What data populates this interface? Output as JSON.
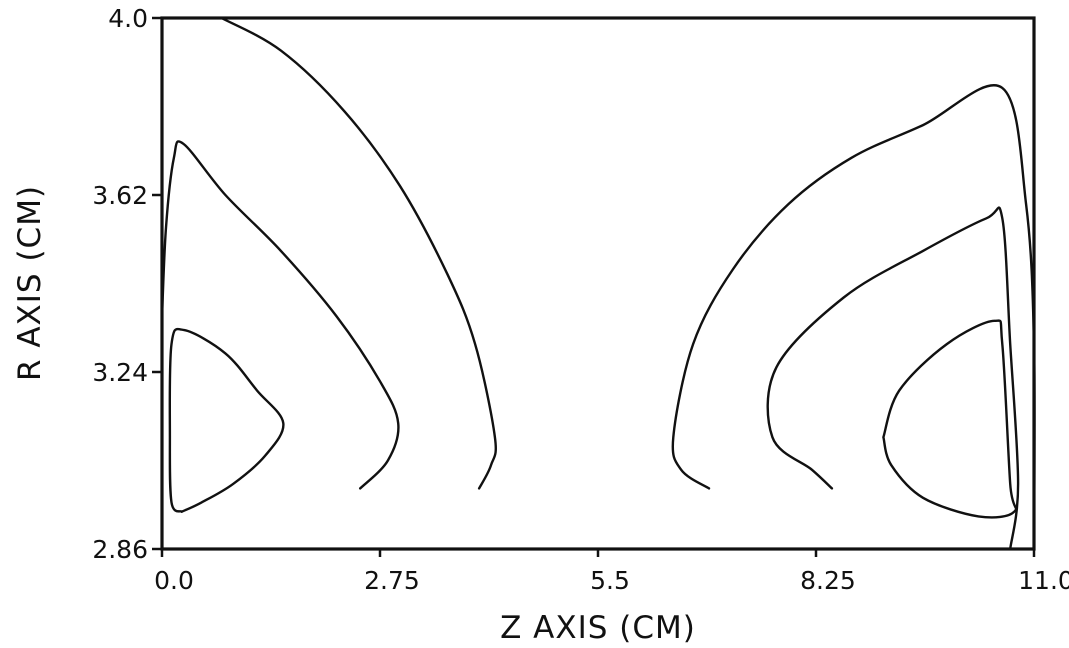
{
  "chart_data": {
    "type": "contour",
    "xlabel": "Z AXIS (CM)",
    "ylabel": "R AXIS (CM)",
    "xlim": [
      0.0,
      11.0
    ],
    "ylim": [
      2.86,
      4.0
    ],
    "x_tick_labels": [
      "0.0",
      "2.75",
      "5.5",
      "8.25",
      "11.0"
    ],
    "y_tick_labels": [
      "2.86",
      "3.24",
      "3.62",
      "4.0"
    ],
    "grid": false,
    "contours": [
      {
        "name": "",
        "points": [
          [
            0.25,
            2.94
          ],
          [
            0.12,
            2.96
          ],
          [
            0.1,
            3.1
          ],
          [
            0.12,
            3.3
          ],
          [
            0.28,
            3.33
          ],
          [
            0.8,
            3.28
          ],
          [
            1.2,
            3.2
          ],
          [
            1.53,
            3.13
          ],
          [
            1.3,
            3.06
          ],
          [
            0.9,
            3.0
          ],
          [
            0.5,
            2.96
          ],
          [
            0.25,
            2.94
          ]
        ]
      },
      {
        "name": "",
        "points": [
          [
            0.0,
            3.36
          ],
          [
            0.05,
            3.55
          ],
          [
            0.15,
            3.7
          ],
          [
            0.27,
            3.73
          ],
          [
            0.8,
            3.62
          ],
          [
            1.5,
            3.5
          ],
          [
            2.2,
            3.36
          ],
          [
            2.75,
            3.22
          ],
          [
            2.98,
            3.13
          ],
          [
            2.85,
            3.05
          ],
          [
            2.5,
            2.99
          ]
        ]
      },
      {
        "name": "",
        "points": [
          [
            0.75,
            4.0
          ],
          [
            1.5,
            3.93
          ],
          [
            2.3,
            3.8
          ],
          [
            3.0,
            3.64
          ],
          [
            3.6,
            3.45
          ],
          [
            3.95,
            3.3
          ],
          [
            4.2,
            3.1
          ],
          [
            4.15,
            3.04
          ],
          [
            4.0,
            2.99
          ]
        ]
      },
      {
        "name": "",
        "points": [
          [
            6.9,
            2.99
          ],
          [
            6.55,
            3.03
          ],
          [
            6.45,
            3.1
          ],
          [
            6.7,
            3.3
          ],
          [
            7.2,
            3.46
          ],
          [
            7.9,
            3.6
          ],
          [
            8.7,
            3.7
          ],
          [
            9.6,
            3.77
          ],
          [
            10.6,
            3.85
          ],
          [
            10.9,
            3.6
          ],
          [
            11.0,
            3.3
          ],
          [
            11.0,
            2.86
          ]
        ]
      },
      {
        "name": "",
        "points": [
          [
            8.45,
            2.99
          ],
          [
            8.2,
            3.03
          ],
          [
            7.7,
            3.1
          ],
          [
            7.75,
            3.25
          ],
          [
            8.6,
            3.4
          ],
          [
            9.6,
            3.5
          ],
          [
            10.4,
            3.57
          ],
          [
            10.6,
            3.57
          ],
          [
            10.7,
            3.3
          ],
          [
            10.8,
            3.0
          ],
          [
            10.7,
            2.86
          ]
        ]
      },
      {
        "name": "",
        "points": [
          [
            9.1,
            3.1
          ],
          [
            9.3,
            3.2
          ],
          [
            9.9,
            3.3
          ],
          [
            10.5,
            3.35
          ],
          [
            10.6,
            3.3
          ],
          [
            10.7,
            3.0
          ],
          [
            10.75,
            2.94
          ],
          [
            10.3,
            2.93
          ],
          [
            9.6,
            2.97
          ],
          [
            9.2,
            3.04
          ],
          [
            9.1,
            3.1
          ]
        ]
      }
    ]
  }
}
